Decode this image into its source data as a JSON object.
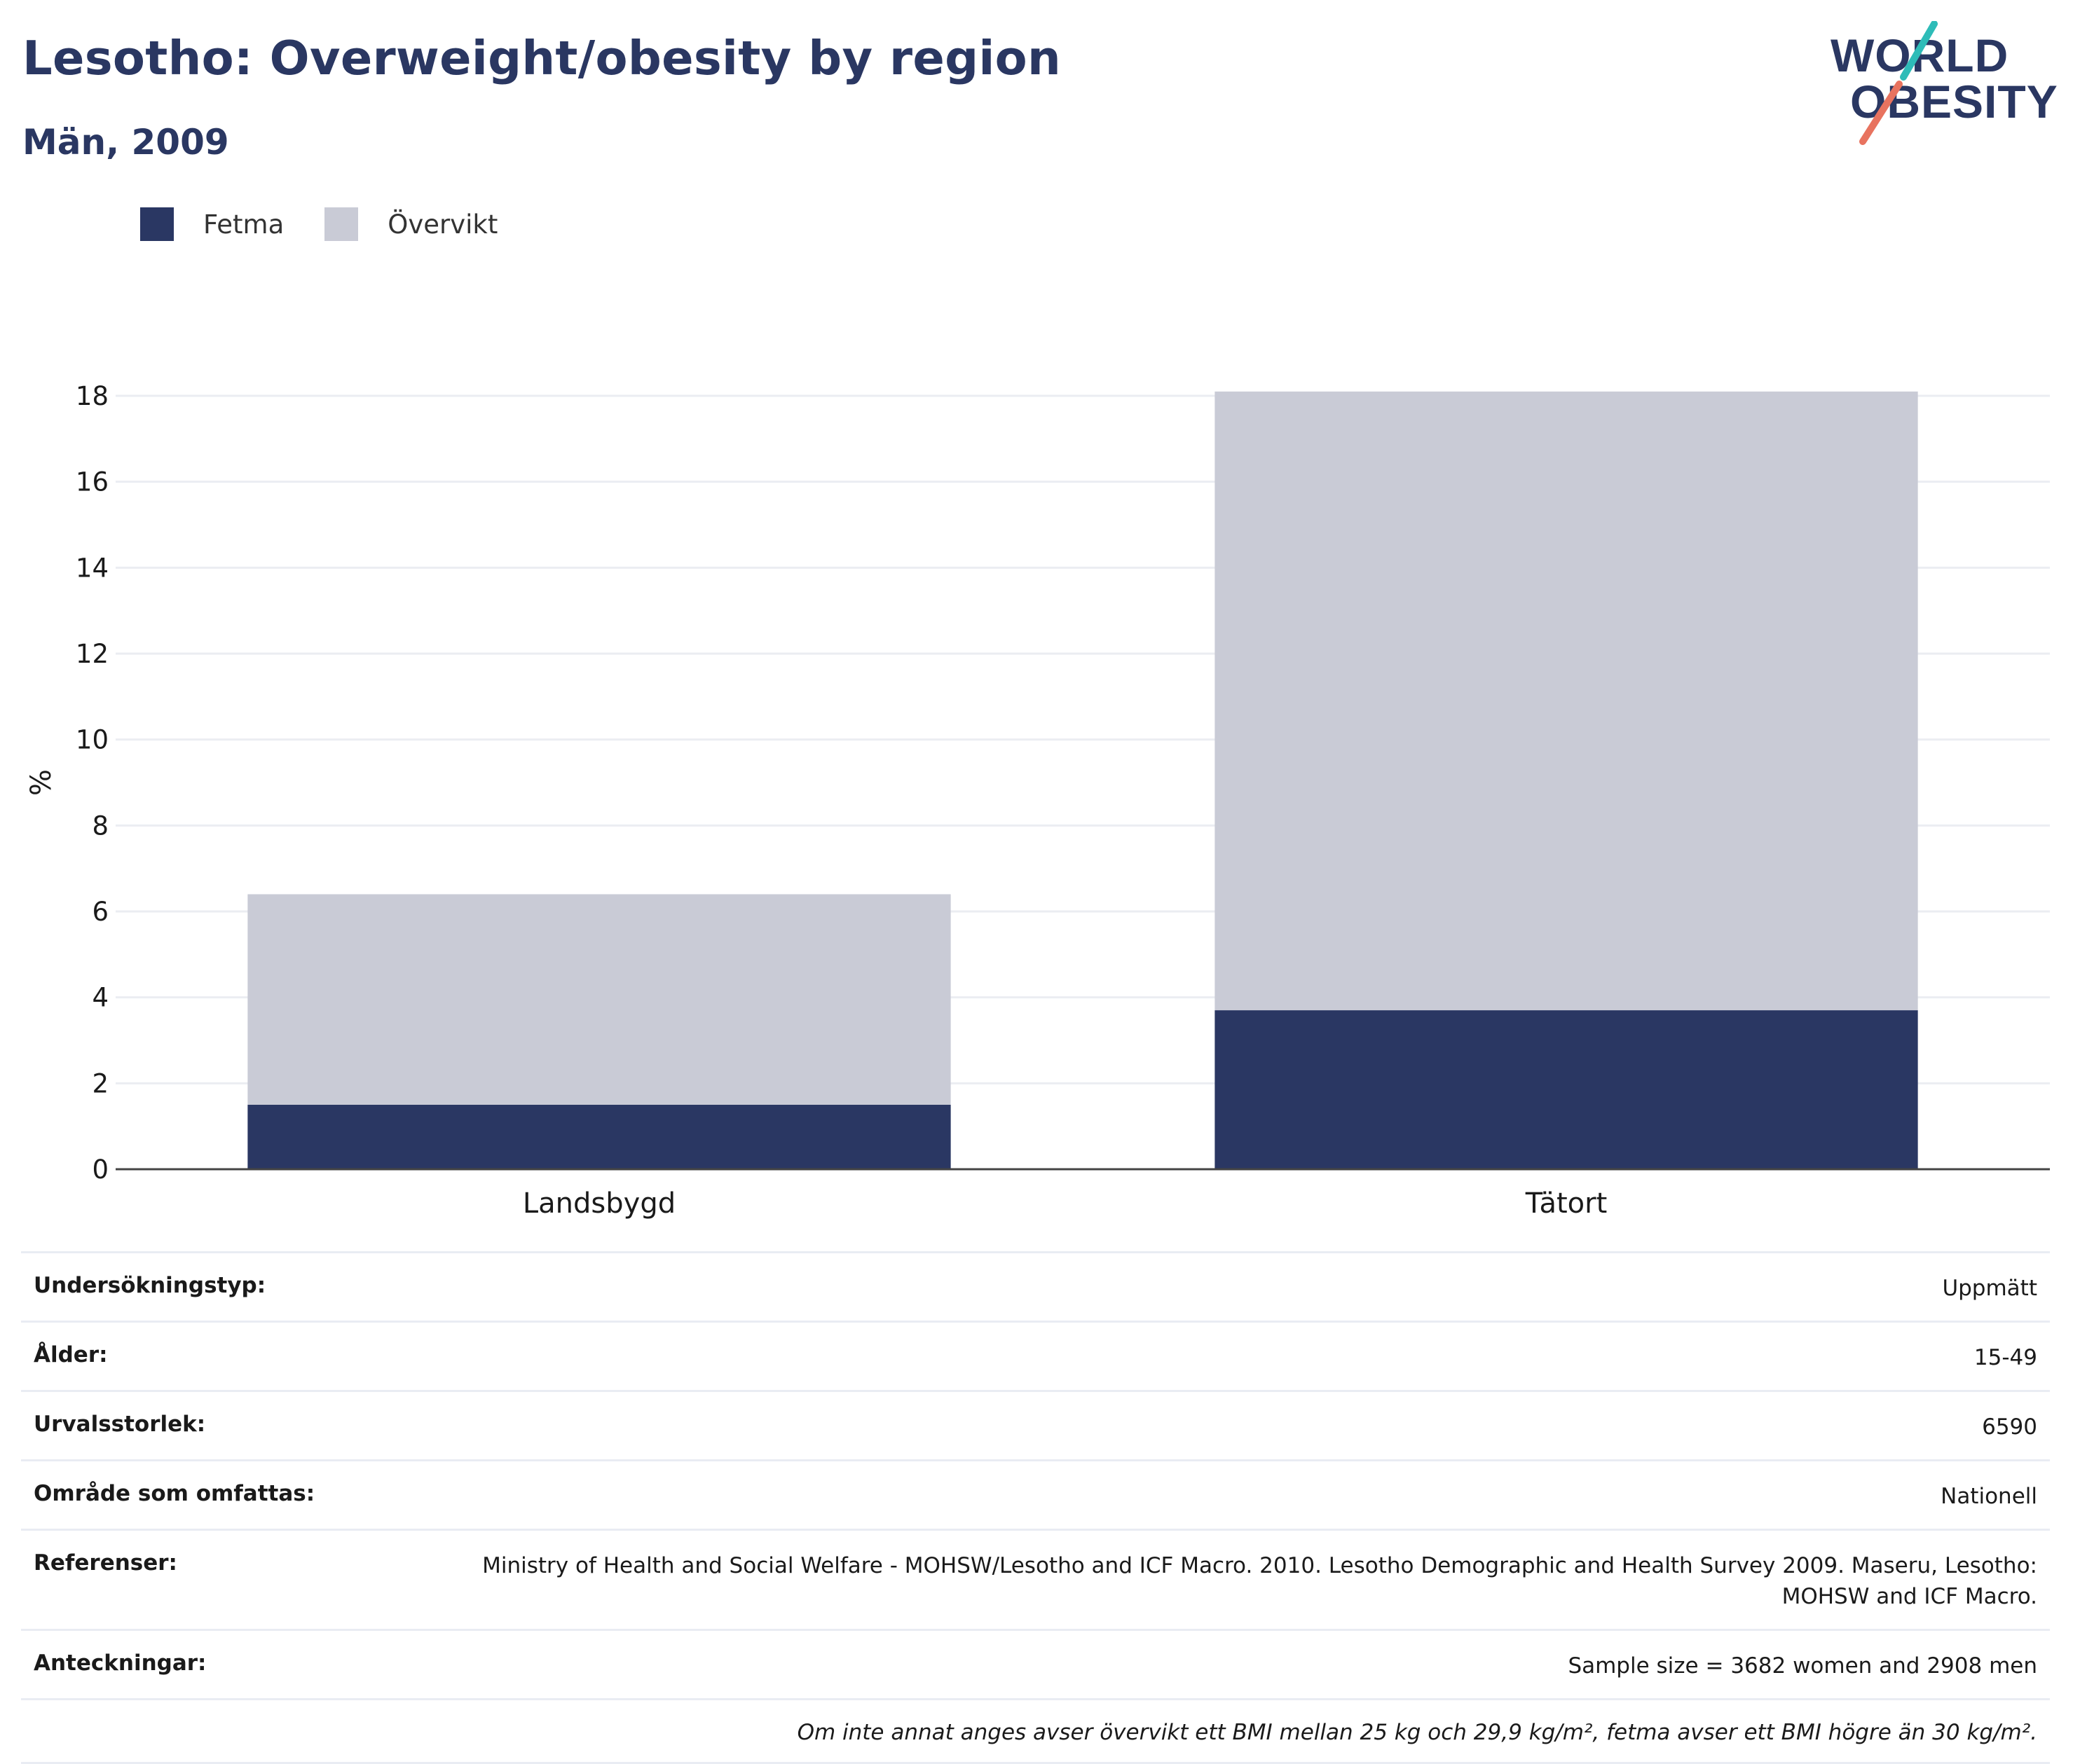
{
  "header": {
    "title": "Lesotho: Overweight/obesity by region",
    "subtitle": "Män, 2009",
    "logo_text_line1": "WORLD",
    "logo_text_line2": "OBESITY"
  },
  "legend": [
    {
      "label": "Fetma",
      "color": "#2a3763"
    },
    {
      "label": "Övervikt",
      "color": "#c9cbd6"
    }
  ],
  "chart_data": {
    "type": "bar",
    "stacked": true,
    "categories": [
      "Landsbygd",
      "Tätort"
    ],
    "series": [
      {
        "name": "Fetma",
        "values": [
          1.5,
          3.7
        ],
        "color": "#2a3763"
      },
      {
        "name": "Övervikt",
        "values": [
          4.9,
          14.4
        ],
        "color": "#c9cbd6"
      }
    ],
    "ylabel": "%",
    "ylim": [
      0,
      18
    ],
    "yticks": [
      0,
      2,
      4,
      6,
      8,
      10,
      12,
      14,
      16,
      18
    ],
    "grid": true,
    "legend_position": "top-left"
  },
  "meta": {
    "rows": [
      {
        "key": "Undersökningstyp:",
        "value": "Uppmätt"
      },
      {
        "key": "Ålder:",
        "value": "15-49"
      },
      {
        "key": "Urvalsstorlek:",
        "value": "6590"
      },
      {
        "key": "Område som omfattas:",
        "value": "Nationell"
      },
      {
        "key": "Referenser:",
        "value": "Ministry of Health and Social Welfare - MOHSW/Lesotho and ICF Macro. 2010. Lesotho Demographic and Health Survey 2009. Maseru, Lesotho: MOHSW and ICF Macro."
      },
      {
        "key": "Anteckningar:",
        "value": "Sample size = 3682 women and 2908 men"
      }
    ],
    "footnote": "Om inte annat anges avser övervikt ett BMI mellan 25 kg och 29,9 kg/m², fetma avser ett BMI högre än 30 kg/m²."
  },
  "colors": {
    "brand_navy": "#2a3762",
    "logo_teal": "#2ebcb8",
    "logo_coral": "#e8735f",
    "grid": "#ebedf2"
  }
}
